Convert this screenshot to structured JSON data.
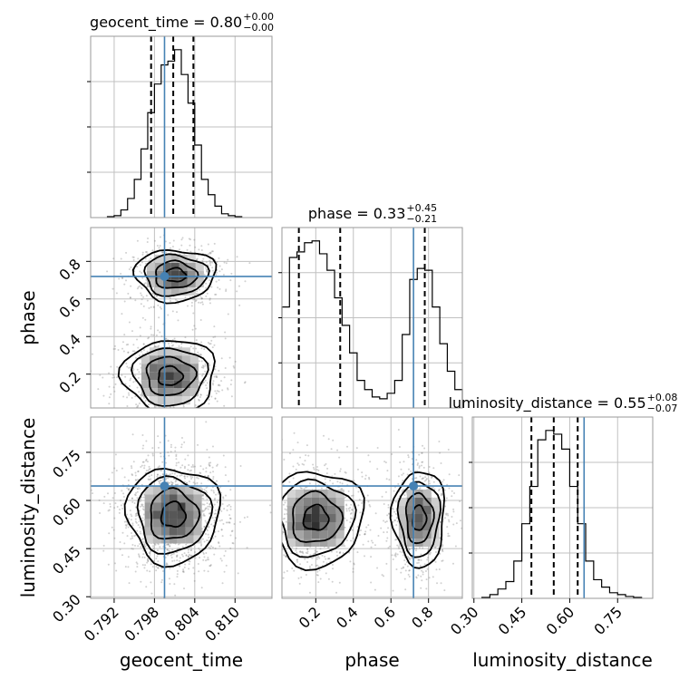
{
  "chart_data": {
    "type": "corner",
    "parameters": [
      "geocent_time",
      "phase",
      "luminosity_distance"
    ],
    "titles": [
      {
        "param": "geocent_time",
        "text": "geocent_time = 0.80",
        "plus": "+0.00",
        "minus": "−0.00"
      },
      {
        "param": "phase",
        "text": "phase = 0.33",
        "plus": "+0.45",
        "minus": "−0.21"
      },
      {
        "param": "luminosity_distance",
        "text": "luminosity_distance = 0.55",
        "plus": "+0.08",
        "minus": "−0.07"
      }
    ],
    "x_labels": [
      "geocent_time",
      "phase",
      "luminosity_distance"
    ],
    "y_labels": [
      "",
      "phase",
      "luminosity_distance"
    ],
    "ranges": {
      "geocent_time": [
        0.7885,
        0.8155
      ],
      "phase": [
        0.02,
        0.98
      ],
      "luminosity_distance": [
        0.295,
        0.86
      ]
    },
    "ticks": {
      "geocent_time": {
        "values": [
          0.792,
          0.798,
          0.804,
          0.81
        ],
        "labels": [
          "0.792",
          "0.798",
          "0.804",
          "0.810"
        ]
      },
      "phase_x": {
        "values": [
          0.2,
          0.4,
          0.6,
          0.8
        ],
        "labels": [
          "0.2",
          "0.4",
          "0.6",
          "0.8"
        ]
      },
      "phase_y": {
        "values": [
          0.2,
          0.4,
          0.6,
          0.8
        ],
        "labels": [
          "0.2",
          "0.4",
          "0.6",
          "0.8"
        ]
      },
      "luminosity_distance": {
        "values": [
          0.3,
          0.45,
          0.6,
          0.75
        ],
        "labels": [
          "0.30",
          "0.45",
          "0.60",
          "0.75"
        ]
      }
    },
    "truths": {
      "geocent_time": 0.7995,
      "phase": 0.72,
      "luminosity_distance": 0.645
    },
    "quantiles": {
      "geocent_time": [
        0.7975,
        0.8008,
        0.8038
      ],
      "phase": [
        0.11,
        0.33,
        0.78
      ],
      "luminosity_distance": [
        0.48,
        0.55,
        0.625
      ]
    },
    "histograms": {
      "geocent_time": {
        "edges": [
          0.791,
          0.792,
          0.793,
          0.794,
          0.795,
          0.796,
          0.797,
          0.798,
          0.799,
          0.8,
          0.801,
          0.802,
          0.803,
          0.804,
          0.805,
          0.806,
          0.807,
          0.808,
          0.809,
          0.81,
          0.811
        ],
        "counts": [
          0.005,
          0.01,
          0.04,
          0.1,
          0.2,
          0.36,
          0.55,
          0.7,
          0.8,
          0.82,
          0.88,
          0.75,
          0.6,
          0.38,
          0.2,
          0.12,
          0.06,
          0.02,
          0.01,
          0.005
        ]
      },
      "phase": {
        "edges": [
          0.02,
          0.06,
          0.1,
          0.14,
          0.18,
          0.22,
          0.26,
          0.3,
          0.34,
          0.38,
          0.42,
          0.46,
          0.5,
          0.54,
          0.58,
          0.62,
          0.66,
          0.7,
          0.74,
          0.78,
          0.82,
          0.86,
          0.9,
          0.94,
          0.98
        ],
        "counts": [
          0.55,
          0.82,
          0.85,
          0.9,
          0.91,
          0.84,
          0.75,
          0.6,
          0.45,
          0.3,
          0.15,
          0.1,
          0.06,
          0.05,
          0.08,
          0.15,
          0.4,
          0.7,
          0.76,
          0.75,
          0.55,
          0.35,
          0.2,
          0.1
        ]
      },
      "luminosity_distance": {
        "edges": [
          0.325,
          0.35,
          0.375,
          0.4,
          0.425,
          0.45,
          0.475,
          0.5,
          0.525,
          0.55,
          0.575,
          0.6,
          0.625,
          0.65,
          0.675,
          0.7,
          0.725,
          0.75,
          0.775,
          0.8,
          0.825
        ],
        "counts": [
          0.005,
          0.02,
          0.05,
          0.09,
          0.2,
          0.4,
          0.6,
          0.85,
          0.9,
          0.88,
          0.8,
          0.6,
          0.4,
          0.2,
          0.1,
          0.06,
          0.03,
          0.02,
          0.01,
          0.005
        ]
      }
    },
    "panels_2d": [
      {
        "x": "geocent_time",
        "y": "phase",
        "modes": [
          [
            0.8011,
            0.727,
            0.0026,
            0.06
          ],
          [
            0.8003,
            0.19,
            0.003,
            0.085
          ]
        ]
      },
      {
        "x": "geocent_time",
        "y": "luminosity_distance",
        "modes": [
          [
            0.8008,
            0.555,
            0.003,
            0.065
          ]
        ]
      },
      {
        "x": "phase",
        "y": "luminosity_distance",
        "modes": [
          [
            0.2,
            0.545,
            0.11,
            0.065
          ],
          [
            0.75,
            0.545,
            0.06,
            0.065
          ]
        ]
      }
    ],
    "colors": {
      "truth": "#4682b4",
      "line": "#000000",
      "grid": "#c0c0c0",
      "frame": "#999999"
    },
    "grid": true
  }
}
